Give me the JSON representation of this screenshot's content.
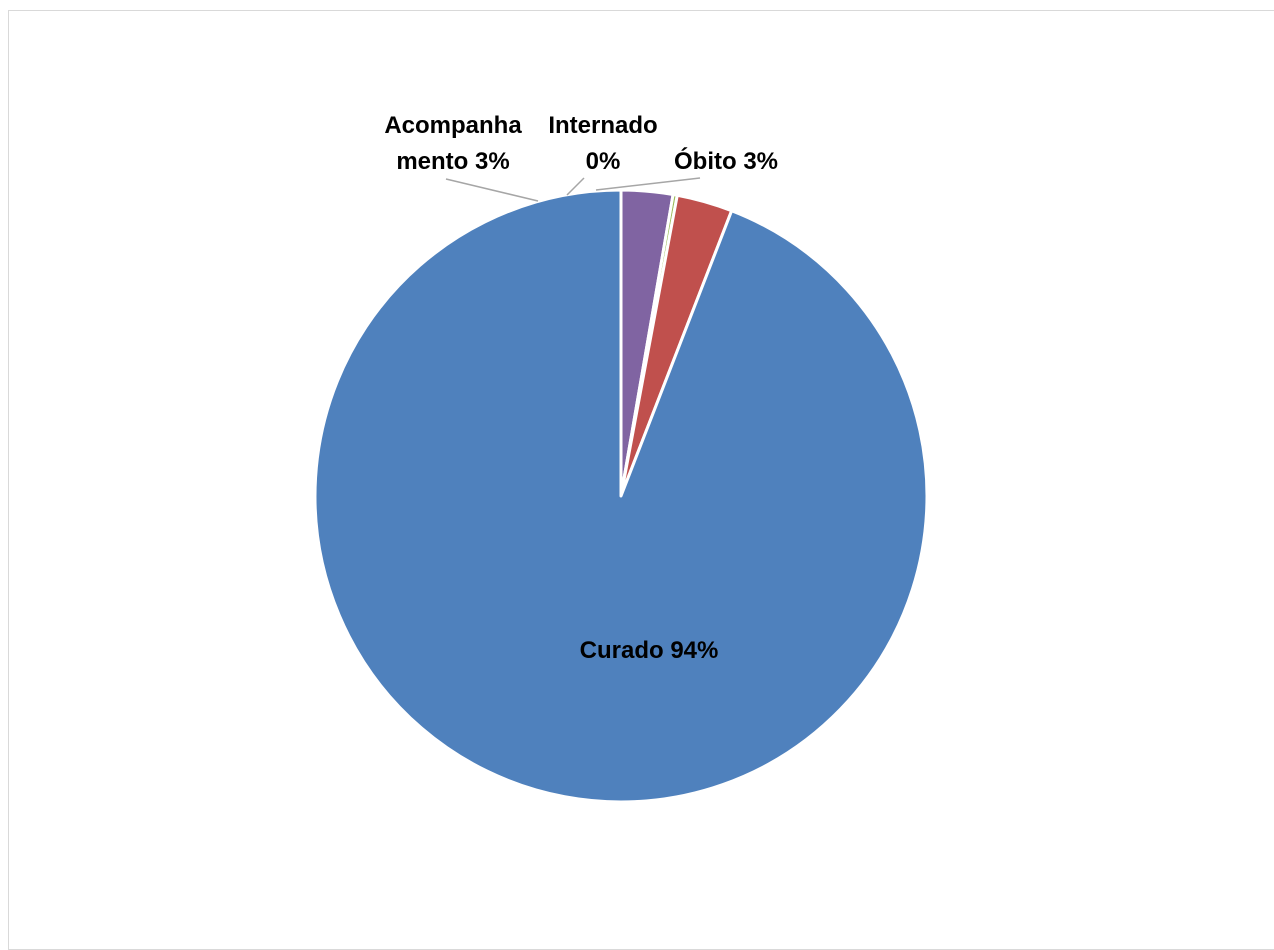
{
  "chart_data": {
    "type": "pie",
    "title": "",
    "slices": [
      {
        "name": "Curado",
        "value": 94,
        "label_name": "Curado",
        "label_value": "94%",
        "color": "#4F81BD"
      },
      {
        "name": "Acompanhamento",
        "value": 3,
        "label_name": "Acompanha",
        "label_value": "mento 3%",
        "color": "#C0504D"
      },
      {
        "name": "Internado",
        "value": 0,
        "label_name": "Internado",
        "label_value": "0%",
        "color": "#9BBB59"
      },
      {
        "name": "Óbito",
        "value": 3,
        "label_name": "Óbito",
        "label_value": "3%",
        "color": "#8064A2"
      }
    ],
    "slice_angles_deg": [
      {
        "name": "Óbito",
        "start": -90,
        "end": -80.2
      },
      {
        "name": "Internado",
        "start": -80.2,
        "end": -79.4
      },
      {
        "name": "Acompanhamento",
        "start": -79.4,
        "end": -68.8
      },
      {
        "name": "Curado",
        "start": -68.8,
        "end": 270
      }
    ],
    "legend": "none"
  }
}
